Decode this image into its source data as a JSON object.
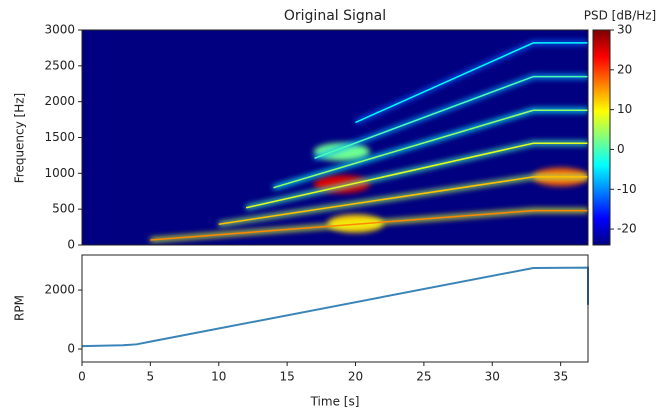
{
  "chart_data": [
    {
      "type": "spectrogram",
      "title": "Original Signal",
      "ylabel": "Frequency [Hz]",
      "colorbar_label": "PSD [dB/Hz]",
      "xlim": [
        0,
        37
      ],
      "ylim": [
        0,
        3000
      ],
      "yticks": [
        0,
        500,
        1000,
        1500,
        2000,
        2500,
        3000
      ],
      "clim": [
        -24,
        30
      ],
      "cticks": [
        -20,
        -10,
        0,
        10,
        20,
        30
      ],
      "colormap": "jet",
      "ridges": [
        {
          "x": [
            5,
            33,
            37
          ],
          "y": [
            70,
            480,
            480
          ],
          "psd": 8
        },
        {
          "x": [
            10,
            33,
            37
          ],
          "y": [
            290,
            950,
            950
          ],
          "psd": 5
        },
        {
          "x": [
            12,
            33,
            37
          ],
          "y": [
            520,
            1420,
            1420
          ],
          "psd": 0
        },
        {
          "x": [
            14,
            33,
            37
          ],
          "y": [
            800,
            1880,
            1880
          ],
          "psd": -4
        },
        {
          "x": [
            17,
            33,
            37
          ],
          "y": [
            1210,
            2350,
            2350
          ],
          "psd": -8
        },
        {
          "x": [
            20,
            33,
            37
          ],
          "y": [
            1710,
            2820,
            2820
          ],
          "psd": -12
        }
      ],
      "hotspots": [
        {
          "x": 19,
          "y": 850,
          "psd": 25
        },
        {
          "x": 20,
          "y": 300,
          "psd": 12
        },
        {
          "x": 19,
          "y": 1300,
          "psd": 2
        },
        {
          "x": 35,
          "y": 950,
          "psd": 18
        }
      ]
    },
    {
      "type": "line",
      "xlabel": "Time [s]",
      "ylabel": "RPM",
      "xlim": [
        0,
        37
      ],
      "xticks": [
        0,
        5,
        10,
        15,
        20,
        25,
        30,
        35
      ],
      "ylim": [
        -440,
        3190
      ],
      "yticks": [
        0,
        2000
      ],
      "series": [
        {
          "color": "#3b84b8",
          "x": [
            0,
            3,
            4,
            5,
            33,
            37,
            37
          ],
          "values": [
            100,
            130,
            160,
            250,
            2750,
            2760,
            1500
          ]
        }
      ]
    }
  ]
}
